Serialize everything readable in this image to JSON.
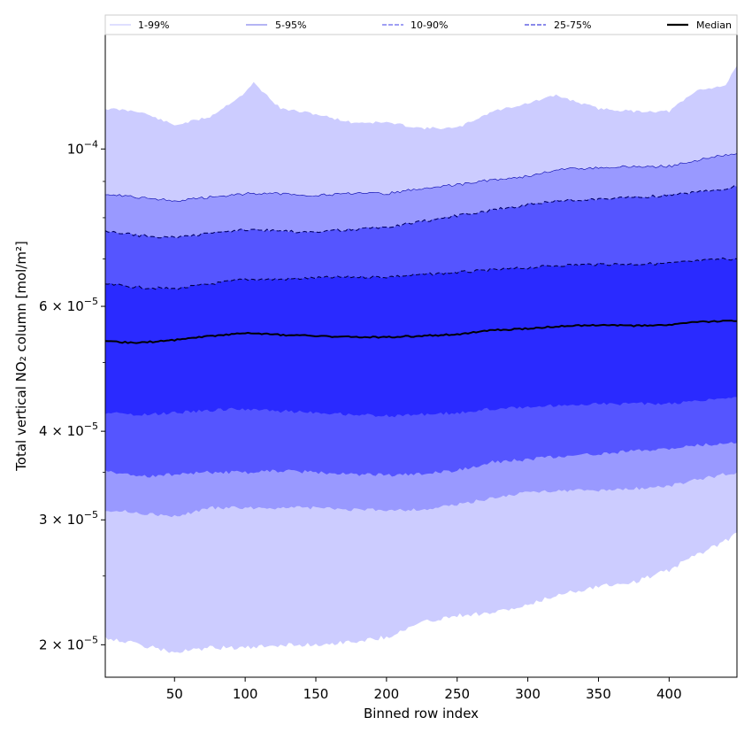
{
  "chart_data": {
    "type": "area",
    "xlabel": "Binned row index",
    "ylabel": "Total vertical NO₂ column [mol/m²]",
    "y_scale": "log",
    "xlim": [
      1,
      448
    ],
    "ylim": [
      1.8e-05,
      0.000145
    ],
    "x_ticks": [
      50,
      100,
      150,
      200,
      250,
      300,
      350,
      400
    ],
    "y_ticks": [
      {
        "value": 0.0001,
        "mantissa": "10",
        "exponent": "−4",
        "times": ""
      },
      {
        "value": 6e-05,
        "mantissa": "6 × 10",
        "exponent": "−5"
      },
      {
        "value": 4e-05,
        "mantissa": "4 × 10",
        "exponent": "−5"
      },
      {
        "value": 3e-05,
        "mantissa": "3 × 10",
        "exponent": "−5"
      },
      {
        "value": 2e-05,
        "mantissa": "2 × 10",
        "exponent": "−5"
      }
    ],
    "grid": false,
    "legend_placement": "top, above plot",
    "x": [
      1,
      25,
      50,
      75,
      100,
      106,
      125,
      150,
      175,
      200,
      225,
      250,
      275,
      300,
      320,
      350,
      375,
      400,
      420,
      440,
      448
    ],
    "series": [
      {
        "name": "1-99%",
        "color": "#ccccff",
        "line_color": "#ccccff",
        "line_style": "solid",
        "lower": [
          2.05e-05,
          2e-05,
          1.95e-05,
          1.98e-05,
          1.98e-05,
          1.98e-05,
          2e-05,
          2e-05,
          2.02e-05,
          2.05e-05,
          2.15e-05,
          2.2e-05,
          2.22e-05,
          2.27e-05,
          2.35e-05,
          2.42e-05,
          2.45e-05,
          2.55e-05,
          2.68e-05,
          2.8e-05,
          2.88e-05
        ],
        "upper": [
          0.000114,
          0.000113,
          0.000108,
          0.000111,
          0.00012,
          0.000124,
          0.000114,
          0.000112,
          0.000109,
          0.000109,
          0.000107,
          0.000107,
          0.000113,
          0.000116,
          0.000119,
          0.000114,
          0.000113,
          0.000113,
          0.000121,
          0.000123,
          0.000131
        ]
      },
      {
        "name": "5-95%",
        "color": "#9999ff",
        "line_color": "#0000aa",
        "line_style": "solid",
        "lower": [
          3.1e-05,
          3.07e-05,
          3.03e-05,
          3.12e-05,
          3.12e-05,
          3.12e-05,
          3.12e-05,
          3.12e-05,
          3.1e-05,
          3.1e-05,
          3.1e-05,
          3.15e-05,
          3.22e-05,
          3.28e-05,
          3.3e-05,
          3.3e-05,
          3.32e-05,
          3.35e-05,
          3.42e-05,
          3.48e-05,
          3.5e-05
        ],
        "upper": [
          8.65e-05,
          8.55e-05,
          8.45e-05,
          8.55e-05,
          8.65e-05,
          8.65e-05,
          8.65e-05,
          8.6e-05,
          8.65e-05,
          8.65e-05,
          8.8e-05,
          8.9e-05,
          9.05e-05,
          9.15e-05,
          9.35e-05,
          9.4e-05,
          9.45e-05,
          9.45e-05,
          9.65e-05,
          9.8e-05,
          9.85e-05
        ]
      },
      {
        "name": "10-90%",
        "color": "#5555ff",
        "line_color": "#000066",
        "line_style": "dashed",
        "lower": [
          3.52e-05,
          3.45e-05,
          3.48e-05,
          3.5e-05,
          3.5e-05,
          3.5e-05,
          3.52e-05,
          3.5e-05,
          3.48e-05,
          3.47e-05,
          3.48e-05,
          3.52e-05,
          3.62e-05,
          3.65e-05,
          3.68e-05,
          3.72e-05,
          3.75e-05,
          3.78e-05,
          3.82e-05,
          3.85e-05,
          3.85e-05
        ],
        "upper": [
          7.65e-05,
          7.55e-05,
          7.5e-05,
          7.6e-05,
          7.7e-05,
          7.7e-05,
          7.65e-05,
          7.65e-05,
          7.7e-05,
          7.75e-05,
          7.9e-05,
          8.05e-05,
          8.2e-05,
          8.35e-05,
          8.45e-05,
          8.5e-05,
          8.55e-05,
          8.6e-05,
          8.7e-05,
          8.8e-05,
          8.85e-05
        ]
      },
      {
        "name": "25-75%",
        "color": "#2a2aff",
        "line_color": "#000044",
        "line_style": "dashed",
        "lower": [
          4.25e-05,
          4.22e-05,
          4.25e-05,
          4.28e-05,
          4.3e-05,
          4.3e-05,
          4.27e-05,
          4.25e-05,
          4.22e-05,
          4.2e-05,
          4.22e-05,
          4.25e-05,
          4.3e-05,
          4.32e-05,
          4.35e-05,
          4.38e-05,
          4.37e-05,
          4.38e-05,
          4.42e-05,
          4.45e-05,
          4.47e-05
        ],
        "upper": [
          6.45e-05,
          6.38e-05,
          6.35e-05,
          6.45e-05,
          6.55e-05,
          6.55e-05,
          6.55e-05,
          6.58e-05,
          6.6e-05,
          6.6e-05,
          6.65e-05,
          6.7e-05,
          6.75e-05,
          6.8e-05,
          6.85e-05,
          6.88e-05,
          6.88e-05,
          6.9e-05,
          6.95e-05,
          7e-05,
          7e-05
        ]
      },
      {
        "name": "Median",
        "color": "#000000",
        "line_color": "#000000",
        "line_style": "solid",
        "values": [
          5.35e-05,
          5.33e-05,
          5.38e-05,
          5.45e-05,
          5.5e-05,
          5.5e-05,
          5.47e-05,
          5.45e-05,
          5.43e-05,
          5.43e-05,
          5.45e-05,
          5.48e-05,
          5.55e-05,
          5.58e-05,
          5.62e-05,
          5.65e-05,
          5.63e-05,
          5.65e-05,
          5.7e-05,
          5.72e-05,
          5.72e-05
        ]
      }
    ],
    "legend": [
      {
        "label": "1-99%",
        "color": "#ccccff",
        "style": "solid"
      },
      {
        "label": "5-95%",
        "color": "#8888ee",
        "style": "solid"
      },
      {
        "label": "10-90%",
        "color": "#6666ee",
        "style": "dashed"
      },
      {
        "label": "25-75%",
        "color": "#4444dd",
        "style": "dashed"
      },
      {
        "label": "Median",
        "color": "#000000",
        "style": "solid"
      }
    ]
  }
}
